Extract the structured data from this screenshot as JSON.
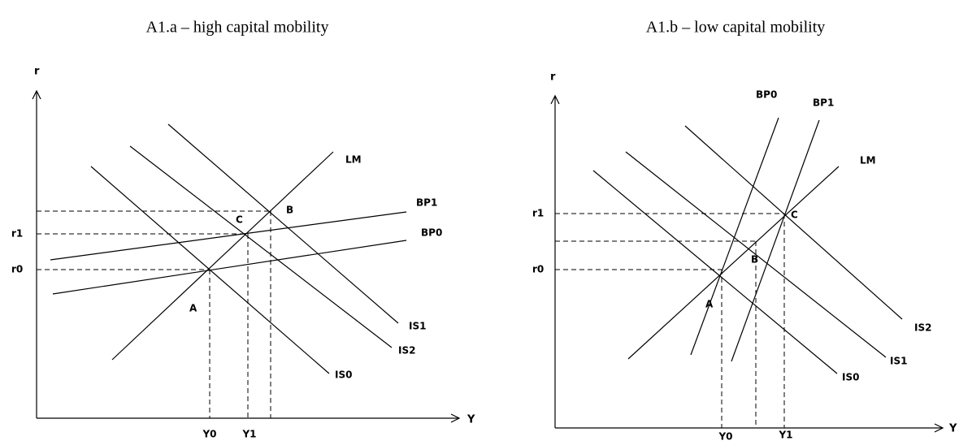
{
  "panels": [
    {
      "title": "A1.a – high capital mobility",
      "axes": {
        "y": "r",
        "x": "Y"
      },
      "curves": [
        "LM",
        "BP1",
        "BP0",
        "IS1",
        "IS2",
        "IS0"
      ],
      "y_ticks": [
        "r1",
        "r0"
      ],
      "x_ticks": [
        "Y0",
        "Y1"
      ],
      "points": [
        "A",
        "C",
        "B"
      ]
    },
    {
      "title": "A1.b – low capital mobility",
      "axes": {
        "y": "r",
        "x": "Y"
      },
      "curves": [
        "BP0",
        "BP1",
        "LM",
        "IS2",
        "IS1",
        "IS0"
      ],
      "y_ticks": [
        "r1",
        "r0"
      ],
      "x_ticks": [
        "Y0",
        "Y1"
      ],
      "points": [
        "C",
        "B",
        "A"
      ]
    }
  ]
}
